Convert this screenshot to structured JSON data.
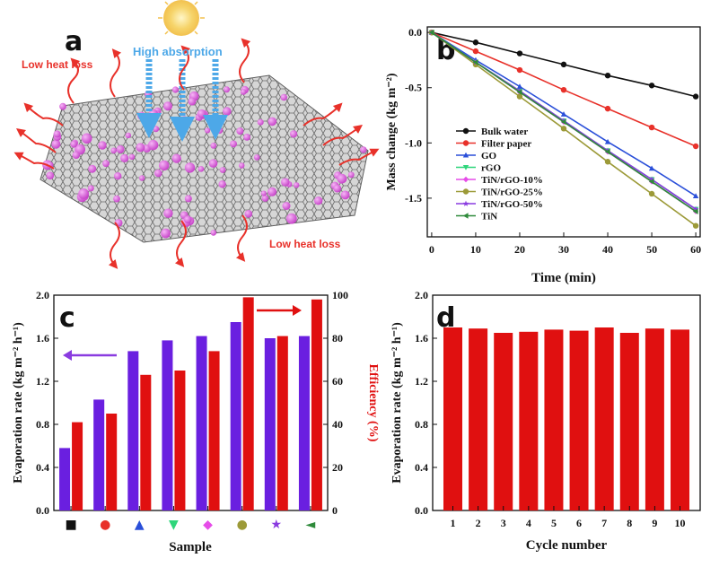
{
  "panels": {
    "a": {
      "label": "a",
      "annotations": {
        "high_absorption": "High absorption",
        "low_heat_loss_top": "Low heat loss",
        "low_heat_loss_bottom": "Low heat loss"
      },
      "colors": {
        "sheet": "#6e6e6e",
        "particles": "#d44fd6",
        "arrows_red": "#e8312a",
        "arrows_blue": "#4da8e8",
        "sun": "#f2c14e"
      }
    },
    "b": {
      "label": "b"
    },
    "c": {
      "label": "c"
    },
    "d": {
      "label": "d"
    }
  },
  "chart_data": [
    {
      "id": "b",
      "type": "line",
      "xlabel": "Time (min)",
      "ylabel": "Mass change (kg m⁻²)",
      "xlim": [
        -1,
        61
      ],
      "ylim": [
        -1.85,
        0.05
      ],
      "xticks": [
        0,
        10,
        20,
        30,
        40,
        50,
        60
      ],
      "yticks": [
        0.0,
        -0.5,
        -1.0,
        -1.5
      ],
      "ytick_labels": [
        "0.0",
        "-0.5",
        "-1.0",
        "-1.5"
      ],
      "x": [
        0,
        10,
        20,
        30,
        40,
        50,
        60
      ],
      "legend_position": "middle-left",
      "series": [
        {
          "name": "Bulk water",
          "color": "#111111",
          "marker": "circle",
          "values": [
            0,
            -0.09,
            -0.19,
            -0.29,
            -0.39,
            -0.48,
            -0.58
          ]
        },
        {
          "name": "Filter paper",
          "color": "#e8312a",
          "marker": "circle",
          "values": [
            0,
            -0.17,
            -0.34,
            -0.52,
            -0.69,
            -0.86,
            -1.03
          ]
        },
        {
          "name": "GO",
          "color": "#2a4fd9",
          "marker": "triangle-up",
          "values": [
            0,
            -0.25,
            -0.49,
            -0.74,
            -0.99,
            -1.23,
            -1.48
          ]
        },
        {
          "name": "rGO",
          "color": "#2fd67b",
          "marker": "triangle-down",
          "values": [
            0,
            -0.27,
            -0.53,
            -0.8,
            -1.07,
            -1.33,
            -1.6
          ]
        },
        {
          "name": "TiN/rGO-10%",
          "color": "#e64ce8",
          "marker": "diamond",
          "values": [
            0,
            -0.27,
            -0.54,
            -0.81,
            -1.08,
            -1.35,
            -1.62
          ]
        },
        {
          "name": "TiN/rGO-25%",
          "color": "#9c9a38",
          "marker": "circle",
          "values": [
            0,
            -0.29,
            -0.58,
            -0.87,
            -1.17,
            -1.46,
            -1.75
          ]
        },
        {
          "name": "TiN/rGO-50%",
          "color": "#8a3be0",
          "marker": "star",
          "values": [
            0,
            -0.27,
            -0.53,
            -0.8,
            -1.07,
            -1.33,
            -1.6
          ]
        },
        {
          "name": "TiN",
          "color": "#2e8a3a",
          "marker": "triangle-left",
          "values": [
            0,
            -0.27,
            -0.54,
            -0.81,
            -1.08,
            -1.35,
            -1.62
          ]
        }
      ]
    },
    {
      "id": "c",
      "type": "bar",
      "xlabel": "Sample",
      "ylabel": "Evaporation rate (kg m⁻² h⁻¹)",
      "ylabel_right": "Efficiency (%)",
      "ylim": [
        0.0,
        2.0
      ],
      "ylim_right": [
        0,
        100
      ],
      "yticks": [
        "0.0",
        "0.4",
        "0.8",
        "1.2",
        "1.6",
        "2.0"
      ],
      "yticks_right": [
        "0",
        "20",
        "40",
        "60",
        "80",
        "100"
      ],
      "categories": [
        "Bulk water",
        "Filter paper",
        "GO",
        "rGO",
        "TiN/rGO-10%",
        "TiN/rGO-25%",
        "TiN/rGO-50%",
        "TiN"
      ],
      "category_symbols": [
        "■",
        "●",
        "▲",
        "▼",
        "◆",
        "●",
        "★",
        "◄"
      ],
      "category_symbol_colors": [
        "#111111",
        "#e8312a",
        "#2a4fd9",
        "#2fd67b",
        "#e64ce8",
        "#9c9a38",
        "#8a3be0",
        "#2e8a3a"
      ],
      "series": [
        {
          "name": "Evaporation rate",
          "axis": "left",
          "color": "#6a1fe0",
          "values": [
            0.58,
            1.03,
            1.48,
            1.58,
            1.62,
            1.75,
            1.6,
            1.62
          ]
        },
        {
          "name": "Efficiency",
          "axis": "right",
          "color": "#e01010",
          "values": [
            41,
            45,
            63,
            65,
            74,
            99,
            81,
            98
          ]
        }
      ]
    },
    {
      "id": "d",
      "type": "bar",
      "xlabel": "Cycle number",
      "ylabel": "Evaporation rate (kg m⁻² h⁻¹)",
      "ylim": [
        0.0,
        2.0
      ],
      "yticks": [
        "0.0",
        "0.4",
        "0.8",
        "1.2",
        "1.6",
        "2.0"
      ],
      "categories": [
        "1",
        "2",
        "3",
        "4",
        "5",
        "6",
        "7",
        "8",
        "9",
        "10"
      ],
      "series": [
        {
          "name": "Evaporation rate",
          "color": "#e01010",
          "values": [
            1.7,
            1.69,
            1.65,
            1.66,
            1.68,
            1.67,
            1.7,
            1.65,
            1.69,
            1.68
          ]
        }
      ]
    }
  ]
}
